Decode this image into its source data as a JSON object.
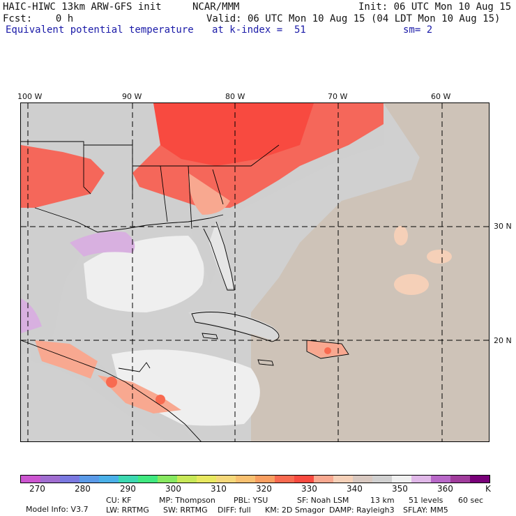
{
  "header": {
    "model": "HAIC-HIWC 13km ARW-GFS init",
    "org": "NCAR/MMM",
    "init": "Init: 06 UTC Mon 10 Aug 15",
    "fcst": "Fcst:    0 h",
    "valid": "Valid: 06 UTC Mon 10 Aug 15 (04 LDT Mon 10 Aug 15)",
    "field": "Equivalent potential temperature",
    "level": "at k-index =  51",
    "smooth": "sm= 2"
  },
  "map": {
    "lon_labels": [
      "100 W",
      "90 W",
      "80 W",
      "70 W",
      "60 W"
    ],
    "lat_labels": [
      "30 N",
      "20 N"
    ],
    "colors": {
      "land_warm": "#f5675a",
      "land_warmer": "#f84a40",
      "ocean_gray": "#d0d0d0",
      "atlantic_tan": "#cec3b8",
      "gulf_white": "#eeeeee",
      "purple": "#d8b0e0"
    }
  },
  "colorbar": {
    "colors": [
      "#cc55d0",
      "#a06dd0",
      "#7a78e0",
      "#5a9ae8",
      "#4ab0e8",
      "#3cd8b0",
      "#40e880",
      "#86e860",
      "#c8e858",
      "#e8e860",
      "#f5d87a",
      "#f8c070",
      "#f89e60",
      "#f86a50",
      "#f84a40",
      "#f8a890",
      "#f5d0b8",
      "#d8c8c0",
      "#d0d0d0",
      "#f0f0f0",
      "#e0b8e8",
      "#b868c8",
      "#a03c9c",
      "#780078"
    ],
    "ticks": [
      "270",
      "280",
      "290",
      "300",
      "310",
      "320",
      "330",
      "340",
      "350",
      "360"
    ],
    "unit": "K"
  },
  "model_info": {
    "line1": [
      "Model Info: V3.7",
      "CU: KF",
      "MP: Thompson",
      "PBL: YSU",
      "SF: Noah LSM",
      "13 km",
      "51 levels",
      "60 sec"
    ],
    "line2": [
      "LW: RRTMG",
      "SW: RRTMG",
      "DIFF: full",
      "KM: 2D Smagor",
      "DAMP: Rayleigh3",
      "SFLAY: MM5"
    ]
  }
}
